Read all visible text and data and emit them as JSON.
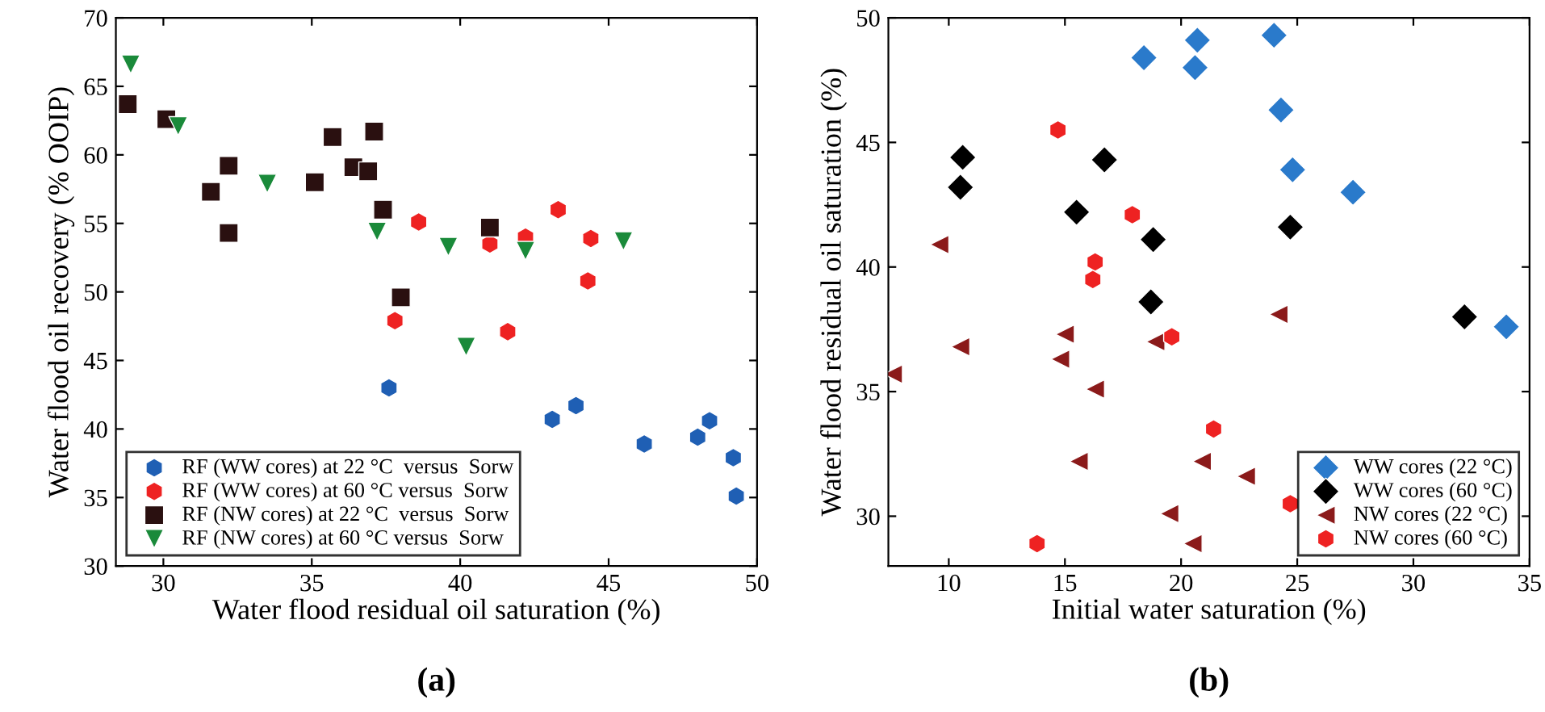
{
  "chart_data": [
    {
      "type": "scatter",
      "xlabel": "Water flood residual oil saturation (%)",
      "ylabel": "Water flood oil recovery (% OOIP)",
      "xlim": [
        28.4,
        50
      ],
      "ylim": [
        30,
        70
      ],
      "xticks": [
        30,
        35,
        40,
        45,
        50
      ],
      "yticks": [
        30,
        35,
        40,
        45,
        50,
        55,
        60,
        65,
        70
      ],
      "legend": "bottom left",
      "grid": false,
      "annotations": [
        "(a)"
      ],
      "series": [
        {
          "name": "RF (WW cores) at 22 °C  versus  Sorw",
          "color": "#1f5fb4",
          "x": [
            37.6,
            43.1,
            43.9,
            46.2,
            48.0,
            48.4,
            49.2,
            49.3
          ],
          "values": [
            43.0,
            40.7,
            41.7,
            38.9,
            39.4,
            40.6,
            37.9,
            35.1
          ]
        },
        {
          "name": "RF (WW cores) at 60 °C versus  Sorw",
          "color": "#ee2222",
          "x": [
            38.6,
            41.0,
            43.3,
            44.4,
            44.3,
            37.8,
            41.6,
            42.2
          ],
          "values": [
            55.1,
            53.5,
            56.0,
            53.9,
            50.8,
            47.9,
            47.1,
            54.0
          ]
        },
        {
          "name": "RF (NW cores) at 22 °C  versus  Sorw",
          "color": "#2a1010",
          "marker": "square",
          "x": [
            28.8,
            30.1,
            31.6,
            32.2,
            32.2,
            35.1,
            35.7,
            36.4,
            36.9,
            37.1,
            37.4,
            38.0,
            41.0
          ],
          "values": [
            63.7,
            62.6,
            57.3,
            59.2,
            54.3,
            58.0,
            61.3,
            59.1,
            58.8,
            61.7,
            56.0,
            49.6,
            54.7
          ]
        },
        {
          "name": "RF (NW cores) at 60 °C versus  Sorw",
          "color": "#1a8a3a",
          "marker": "triangle_down",
          "x": [
            28.9,
            30.5,
            33.5,
            37.2,
            39.6,
            40.2,
            42.2,
            45.5
          ],
          "values": [
            66.6,
            62.1,
            57.9,
            54.4,
            53.3,
            46.0,
            53.0,
            53.7
          ]
        }
      ]
    },
    {
      "type": "scatter",
      "xlabel": "Initial water saturation (%)",
      "ylabel": "Water flood residual oil saturation (%)",
      "xlim": [
        7.4,
        35
      ],
      "ylim": [
        28,
        50
      ],
      "xticks": [
        10,
        15,
        20,
        25,
        30,
        35
      ],
      "yticks": [
        30,
        35,
        40,
        45,
        50
      ],
      "legend": "bottom right",
      "grid": false,
      "annotations": [
        "(b)"
      ],
      "series": [
        {
          "name": "WW cores (22 °C)",
          "color": "#2a7acb",
          "marker": "diamond",
          "x": [
            18.4,
            20.7,
            20.6,
            24.0,
            24.3,
            24.8,
            27.4,
            34.0
          ],
          "values": [
            48.4,
            49.1,
            48.0,
            49.3,
            46.3,
            43.9,
            43.0,
            37.6
          ]
        },
        {
          "name": "WW cores (60 °C)",
          "color": "#000000",
          "marker": "diamond",
          "x": [
            10.6,
            10.5,
            15.5,
            16.7,
            18.8,
            18.7,
            24.7,
            32.2
          ],
          "values": [
            44.4,
            43.2,
            42.2,
            44.3,
            41.1,
            38.6,
            41.6,
            38.0
          ]
        },
        {
          "name": "NW cores (22 °C)",
          "color": "#8b1a1a",
          "marker": "triangle_left",
          "x": [
            7.6,
            9.6,
            10.5,
            15.0,
            14.8,
            15.6,
            16.3,
            18.9,
            19.5,
            20.5,
            20.9,
            22.8,
            24.2
          ],
          "values": [
            35.7,
            40.9,
            36.8,
            37.3,
            36.3,
            32.2,
            35.1,
            37.0,
            30.1,
            28.9,
            32.2,
            31.6,
            38.1
          ]
        },
        {
          "name": "NW cores (60 °C)",
          "color": "#ee2222",
          "x": [
            14.7,
            13.8,
            16.3,
            16.2,
            17.9,
            19.6,
            21.4,
            24.7
          ],
          "values": [
            45.5,
            28.9,
            40.2,
            39.5,
            42.1,
            37.2,
            33.5,
            30.5
          ]
        }
      ]
    }
  ]
}
